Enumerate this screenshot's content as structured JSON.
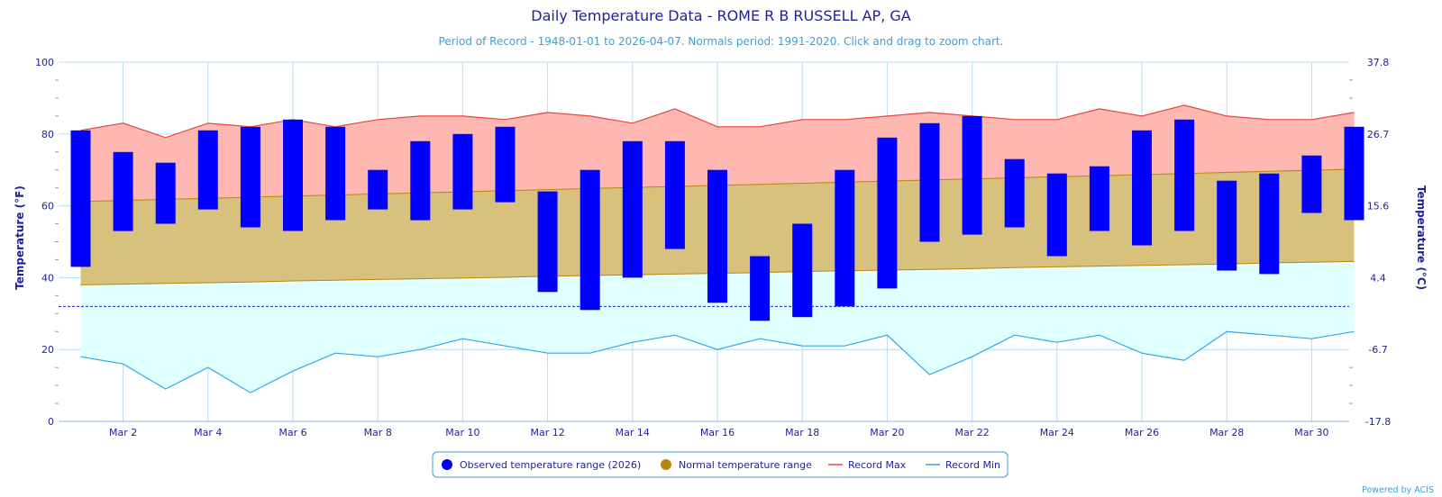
{
  "chart_data": {
    "type": "floating-bar+area+line",
    "title": "Daily Temperature Data - ROME R B RUSSELL AP, GA",
    "subtitle": "Period of Record - 1948-01-01 to 2026-04-07. Normals period: 1991-2020. Click and drag to zoom chart.",
    "ylabel_left": "Temperature (°F)",
    "ylabel_right": "Temperature (°C)",
    "ylim": [
      0,
      100
    ],
    "y_ticks_left": [
      "0",
      "20",
      "40",
      "60",
      "80",
      "100"
    ],
    "y_ticks_right": [
      "-17.8",
      "-6.7",
      "4.4",
      "15.6",
      "26.7",
      "37.8"
    ],
    "x_labels": [
      "Mar 2",
      "Mar 4",
      "Mar 6",
      "Mar 8",
      "Mar 10",
      "Mar 12",
      "Mar 14",
      "Mar 16",
      "Mar 18",
      "Mar 20",
      "Mar 22",
      "Mar 24",
      "Mar 26",
      "Mar 28",
      "Mar 30"
    ],
    "freezing_line": 32,
    "days": [
      1,
      2,
      3,
      4,
      5,
      6,
      7,
      8,
      9,
      10,
      11,
      12,
      13,
      14,
      15,
      16,
      17,
      18,
      19,
      20,
      21,
      22,
      23,
      24,
      25,
      26,
      27,
      28,
      29,
      30,
      31
    ],
    "observed_max": [
      81,
      75,
      72,
      81,
      82,
      84,
      82,
      70,
      78,
      80,
      82,
      64,
      70,
      78,
      78,
      70,
      46,
      55,
      70,
      79,
      83,
      85,
      73,
      69,
      71,
      81,
      84,
      67,
      69,
      74,
      82
    ],
    "observed_min": [
      43,
      53,
      55,
      59,
      54,
      53,
      56,
      59,
      56,
      59,
      61,
      36,
      31,
      40,
      48,
      33,
      28,
      29,
      32,
      37,
      50,
      52,
      54,
      46,
      53,
      49,
      53,
      42,
      41,
      58,
      56
    ],
    "normal_max": [
      61.2,
      61.5,
      61.8,
      62.1,
      62.4,
      62.7,
      63.0,
      63.3,
      63.6,
      63.9,
      64.2,
      64.5,
      64.8,
      65.1,
      65.4,
      65.7,
      66.0,
      66.3,
      66.6,
      66.9,
      67.2,
      67.5,
      67.8,
      68.1,
      68.4,
      68.7,
      69.0,
      69.3,
      69.6,
      69.9,
      70.2
    ],
    "normal_min": [
      38.0,
      38.2,
      38.4,
      38.6,
      38.8,
      39.1,
      39.3,
      39.5,
      39.7,
      39.9,
      40.1,
      40.4,
      40.6,
      40.8,
      41.0,
      41.2,
      41.4,
      41.7,
      41.9,
      42.1,
      42.3,
      42.5,
      42.8,
      43.0,
      43.2,
      43.4,
      43.6,
      43.8,
      44.1,
      44.3,
      44.5
    ],
    "record_max": [
      81,
      83,
      79,
      83,
      82,
      84,
      82,
      84,
      85,
      85,
      84,
      86,
      85,
      83,
      87,
      82,
      82,
      84,
      84,
      85,
      86,
      85,
      84,
      84,
      87,
      85,
      88,
      85,
      84,
      84,
      86
    ],
    "record_min": [
      18,
      16,
      9,
      15,
      8,
      14,
      19,
      18,
      20,
      23,
      21,
      19,
      19,
      22,
      24,
      20,
      23,
      21,
      21,
      24,
      13,
      18,
      24,
      22,
      24,
      19,
      17,
      25,
      24,
      23,
      25
    ],
    "legend": [
      {
        "label": "Observed temperature range (2026)",
        "color": "#0000ff",
        "symbol": "circle"
      },
      {
        "label": "Normal temperature range",
        "color": "#b8860b",
        "symbol": "circle"
      },
      {
        "label": "Record Max",
        "color": "#e8453c",
        "symbol": "line"
      },
      {
        "label": "Record Min",
        "color": "#2fa8e6",
        "symbol": "line"
      }
    ],
    "credits": "Powered by ACIS",
    "colors": {
      "observed": "#0000ff",
      "normal_fill": "#d8c07d",
      "normal_line": "#b8860b",
      "record_max_fill": "#ffb7b2",
      "record_max_line": "#e8453c",
      "record_min_fill": "#e0ffff",
      "record_min_line": "#2fa8e6",
      "grid": "#b5dcf3",
      "text": "#1f1f99",
      "freezing": "#1f1fcc"
    }
  }
}
